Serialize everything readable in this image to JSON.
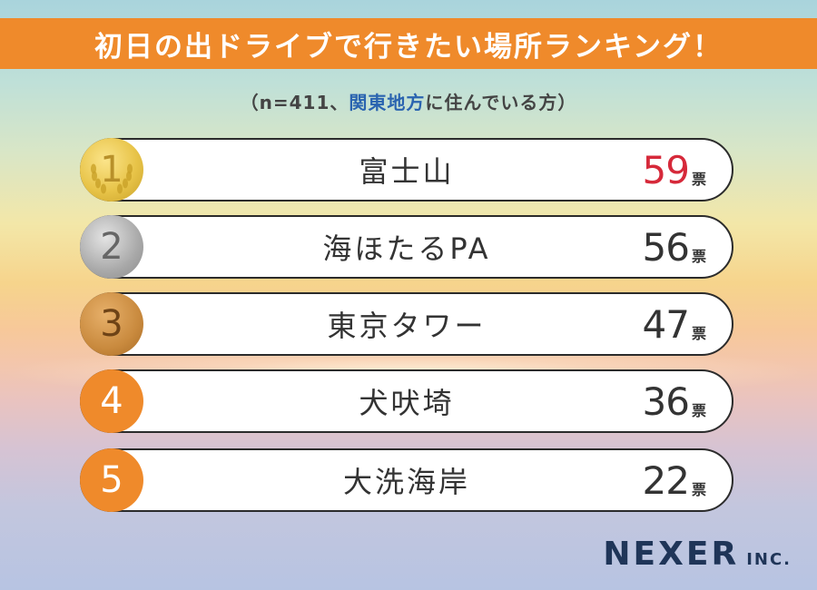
{
  "title": "初日の出ドライブで行きたい場所ランキング！",
  "subtitle": {
    "prefix": "（n=411、",
    "highlight": "関東地方",
    "suffix": "に住んでいる方）"
  },
  "unit": "票",
  "chart_data": {
    "type": "bar",
    "title": "初日の出ドライブで行きたい場所ランキング！",
    "categories": [
      "富士山",
      "海ほたるPA",
      "東京タワー",
      "犬吠埼",
      "大洗海岸"
    ],
    "values": [
      59,
      56,
      47,
      36,
      22
    ],
    "ranks": [
      "1",
      "2",
      "3",
      "4",
      "5"
    ],
    "unit": "票"
  },
  "colors": {
    "title_bar": "#ef8a2b",
    "highlight_text": "#2a64b0",
    "top_vote": "#d6293a",
    "vote": "#333333",
    "medal_gold": "#e8c449",
    "medal_silver": "#a9a9a9",
    "medal_bronze": "#c98a3e",
    "medal_orange": "#ef8a2b"
  },
  "logo": {
    "main": "NEXER",
    "sub": "INC."
  }
}
